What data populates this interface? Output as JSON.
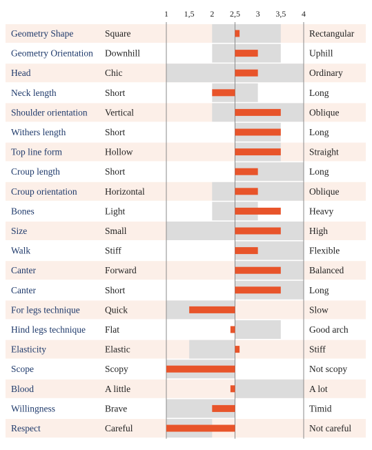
{
  "colors": {
    "row_band": "#fcefe8",
    "range_bar": "#dcdcdc",
    "value_bar": "#e8542a",
    "axis_line": "#8a8a8a",
    "trait_text": "#1f3a6b"
  },
  "chart_data": {
    "type": "bar",
    "orientation": "horizontal",
    "x_ticks": [
      {
        "value": 1,
        "label": "1"
      },
      {
        "value": 1.5,
        "label": "1,5"
      },
      {
        "value": 2,
        "label": "2"
      },
      {
        "value": 2.5,
        "label": "2,5"
      },
      {
        "value": 3,
        "label": "3"
      },
      {
        "value": 3.5,
        "label": "3,5"
      },
      {
        "value": 4,
        "label": "4"
      }
    ],
    "xlim": [
      1,
      4
    ],
    "reference_value": 2.5,
    "rows": [
      {
        "trait": "Geometry Shape",
        "low": "Square",
        "high": "Rectangular",
        "range": [
          2,
          3.5
        ],
        "value": 2.6
      },
      {
        "trait": "Geometry Orientation",
        "low": "Downhill",
        "high": "Uphill",
        "range": [
          2,
          3.5
        ],
        "value": 3.0
      },
      {
        "trait": "Head",
        "low": "Chic",
        "high": "Ordinary",
        "range": [
          1,
          4
        ],
        "value": 3.0
      },
      {
        "trait": "Neck length",
        "low": "Short",
        "high": "Long",
        "range": [
          2,
          3
        ],
        "value": 2.0
      },
      {
        "trait": "Shoulder orientation",
        "low": "Vertical",
        "high": "Oblique",
        "range": [
          2,
          4
        ],
        "value": 3.5
      },
      {
        "trait": "Withers length",
        "low": "Short",
        "high": "Long",
        "range": [
          2.5,
          3.5
        ],
        "value": 3.5
      },
      {
        "trait": "Top line form",
        "low": "Hollow",
        "high": "Straight",
        "range": [
          2.5,
          3.5
        ],
        "value": 3.5
      },
      {
        "trait": "Croup length",
        "low": "Short",
        "high": "Long",
        "range": [
          2.5,
          4
        ],
        "value": 3.0
      },
      {
        "trait": "Croup orientation",
        "low": "Horizontal",
        "high": "Oblique",
        "range": [
          2,
          4
        ],
        "value": 3.0
      },
      {
        "trait": "Bones",
        "low": "Light",
        "high": "Heavy",
        "range": [
          2,
          3
        ],
        "value": 3.5
      },
      {
        "trait": "Size",
        "low": "Small",
        "high": "High",
        "range": [
          1,
          4
        ],
        "value": 3.5
      },
      {
        "trait": "Walk",
        "low": "Stiff",
        "high": "Flexible",
        "range": [
          2.5,
          4
        ],
        "value": 3.0
      },
      {
        "trait": "Canter",
        "low": "Forward",
        "high": "Balanced",
        "range": [
          2.5,
          4
        ],
        "value": 3.5
      },
      {
        "trait": "Canter",
        "low": "Short",
        "high": "Long",
        "range": [
          2.5,
          4
        ],
        "value": 3.5
      },
      {
        "trait": "For legs technique",
        "low": "Quick",
        "high": "Slow",
        "range": [
          1,
          2.5
        ],
        "value": 1.5
      },
      {
        "trait": "Hind legs technique",
        "low": "Flat",
        "high": "Good arch",
        "range": [
          2.5,
          3.5
        ],
        "value": 2.4
      },
      {
        "trait": "Elasticity",
        "low": "Elastic",
        "high": "Stiff",
        "range": [
          1.5,
          2.5
        ],
        "value": 2.6
      },
      {
        "trait": "Scope",
        "low": "Scopy",
        "high": "Not scopy",
        "range": [
          1,
          2.5
        ],
        "value": 1.0
      },
      {
        "trait": "Blood",
        "low": "A little",
        "high": "A lot",
        "range": [
          2.5,
          4
        ],
        "value": 2.4
      },
      {
        "trait": "Willingness",
        "low": "Brave",
        "high": "Timid",
        "range": [
          1,
          2.5
        ],
        "value": 2.0
      },
      {
        "trait": "Respect",
        "low": "Careful",
        "high": "Not careful",
        "range": [
          1,
          2
        ],
        "value": 1.0
      }
    ]
  }
}
